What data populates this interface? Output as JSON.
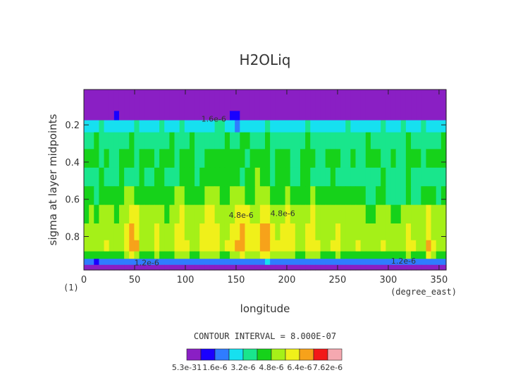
{
  "chart_data": {
    "type": "heatmap",
    "title": "H2OLiq",
    "xlabel": "longitude",
    "ylabel": "sigma at layer midpoints",
    "x_units": "(degree_east)",
    "corner_label": "(1)",
    "xlim": [
      0,
      357
    ],
    "ylim": [
      0.98,
      0.01
    ],
    "x_ticks": [
      0,
      50,
      100,
      150,
      200,
      250,
      300,
      350
    ],
    "x_tick_labels": [
      "0",
      "50",
      "100",
      "150",
      "200",
      "250",
      "300",
      "350"
    ],
    "y_ticks": [
      0.2,
      0.4,
      0.6,
      0.8
    ],
    "y_tick_labels": [
      "0.2",
      "0.4",
      "0.6",
      "0.8"
    ],
    "contour_interval_text": "CONTOUR INTERVAL = 8.000E-07",
    "contour_line_labels": [
      {
        "text": "1.2e-6",
        "x": 62,
        "y": 0.955
      },
      {
        "text": "1.6e-6",
        "x": 128,
        "y": 0.182
      },
      {
        "text": "4.8e-6",
        "x": 155,
        "y": 0.7
      },
      {
        "text": "4.8e-6",
        "x": 196,
        "y": 0.69
      },
      {
        "text": "1.2e-6",
        "x": 315,
        "y": 0.945
      }
    ],
    "colorbar": {
      "levels": [
        5.3e-31,
        8e-07,
        1.6e-06,
        2.4e-06,
        3.2e-06,
        4e-06,
        4.8e-06,
        5.6e-06,
        6.4e-06,
        7.2e-06,
        7.62e-06
      ],
      "colors": [
        "#8a1fc4",
        "#1a00ff",
        "#2f7cff",
        "#16e0f0",
        "#19e68c",
        "#16d21a",
        "#a5f018",
        "#f0f01a",
        "#f7a21a",
        "#f21818",
        "#f5a8b0"
      ],
      "labels": [
        "5.3e-31",
        "1.6e-6",
        "3.2e-6",
        "4.8e-6",
        "6.4e-6",
        "7.62e-6"
      ]
    },
    "series": [
      {
        "y": 0.02,
        "values": [
          0.05,
          0.05,
          0.05,
          0.05,
          0.05,
          0.05,
          0.05,
          0.05,
          0.05,
          0.05,
          0.05,
          0.05,
          0.05,
          0.05,
          0.05,
          0.05,
          0.05,
          0.05,
          0.05,
          0.05,
          0.05,
          0.05,
          0.05,
          0.05,
          0.05,
          0.05,
          0.05,
          0.05,
          0.05,
          0.05,
          0.05,
          0.05,
          0.05,
          0.05,
          0.05,
          0.05,
          0.05,
          0.05,
          0.05,
          0.05,
          0.05,
          0.05,
          0.05,
          0.05,
          0.05,
          0.05,
          0.05,
          0.05,
          0.05,
          0.05,
          0.05,
          0.05,
          0.05,
          0.05,
          0.05,
          0.05,
          0.05,
          0.05,
          0.05,
          0.05,
          0.05,
          0.05,
          0.05,
          0.05,
          0.05,
          0.05,
          0.05,
          0.05,
          0.05,
          0.05,
          0.05,
          0.05
        ]
      },
      {
        "y": 0.1,
        "values": [
          0.05,
          0.05,
          0.05,
          0.05,
          0.05,
          0.05,
          0.05,
          0.05,
          0.05,
          0.05,
          0.05,
          0.05,
          0.05,
          0.05,
          0.05,
          0.05,
          0.05,
          0.05,
          0.05,
          0.05,
          0.05,
          0.05,
          0.05,
          0.05,
          0.05,
          0.05,
          0.05,
          0.05,
          0.05,
          0.05,
          0.05,
          0.05,
          0.05,
          0.05,
          0.05,
          0.05,
          0.05,
          0.05,
          0.05,
          0.05,
          0.05,
          0.05,
          0.05,
          0.05,
          0.05,
          0.05,
          0.05,
          0.05,
          0.05,
          0.05,
          0.05,
          0.05,
          0.05,
          0.05,
          0.05,
          0.05,
          0.05,
          0.05,
          0.05,
          0.05,
          0.05,
          0.05,
          0.05,
          0.05,
          0.05,
          0.05,
          0.05,
          0.05,
          0.05,
          0.05,
          0.05,
          0.05
        ]
      },
      {
        "y": 0.15,
        "values": [
          0.6,
          0.5,
          0.6,
          0.7,
          0.5,
          0.6,
          0.8,
          0.6,
          0.5,
          0.6,
          0.7,
          0.6,
          0.5,
          0.6,
          0.6,
          0.7,
          0.5,
          0.6,
          0.6,
          0.7,
          0.6,
          0.5,
          0.6,
          0.7,
          0.6,
          0.6,
          0.5,
          0.6,
          0.7,
          0.9,
          0.8,
          0.6,
          0.6,
          0.5,
          0.6,
          0.6,
          0.7,
          0.5,
          0.6,
          0.6,
          0.6,
          0.7,
          0.5,
          0.6,
          0.6,
          0.7,
          0.6,
          0.5,
          0.6,
          0.7,
          0.6,
          0.6,
          0.5,
          0.6,
          0.7,
          0.6,
          0.6,
          0.5,
          0.6,
          0.7,
          0.6,
          0.6,
          0.5,
          0.6,
          0.7,
          0.6,
          0.6,
          0.5,
          0.6,
          0.7,
          0.6,
          0.6
        ]
      },
      {
        "y": 0.2,
        "values": [
          2.6,
          2.4,
          2.8,
          3.2,
          2.6,
          2.5,
          3.0,
          2.7,
          2.4,
          2.9,
          3.3,
          2.8,
          2.5,
          2.7,
          3.1,
          3.4,
          2.6,
          2.5,
          2.9,
          3.2,
          2.7,
          2.4,
          2.8,
          3.1,
          2.6,
          2.9,
          3.4,
          3.6,
          3.0,
          2.4,
          2.0,
          2.6,
          3.0,
          2.8,
          2.5,
          2.7,
          3.2,
          2.9,
          2.6,
          2.8,
          3.1,
          2.7,
          2.5,
          2.9,
          3.3,
          2.8,
          2.6,
          2.7,
          3.1,
          2.8,
          2.5,
          2.9,
          3.3,
          2.7,
          2.4,
          2.8,
          3.1,
          2.6,
          2.9,
          3.3,
          2.8,
          2.5,
          2.9,
          3.4,
          3.0,
          2.6,
          2.8,
          3.2,
          2.7,
          2.5,
          2.9,
          2.7
        ]
      },
      {
        "y": 0.28,
        "values": [
          3.3,
          3.8,
          4.2,
          3.6,
          3.4,
          3.9,
          3.5,
          3.3,
          3.6,
          4.1,
          3.7,
          3.4,
          3.5,
          3.9,
          3.6,
          3.3,
          3.7,
          4.0,
          3.5,
          3.4,
          3.8,
          4.2,
          3.6,
          3.3,
          3.5,
          3.9,
          3.6,
          3.7,
          4.1,
          3.8,
          3.5,
          4.3,
          4.6,
          3.9,
          3.5,
          3.6,
          4.0,
          3.7,
          3.4,
          3.6,
          3.9,
          3.5,
          3.3,
          3.7,
          4.1,
          3.8,
          3.5,
          3.4,
          3.8,
          3.6,
          3.3,
          3.5,
          3.9,
          3.6,
          3.4,
          3.7,
          4.1,
          3.8,
          3.5,
          3.6,
          3.9,
          3.5,
          3.4,
          3.7,
          4.0,
          3.6,
          3.3,
          3.6,
          3.9,
          3.7,
          3.5,
          4.0
        ]
      },
      {
        "y": 0.38,
        "values": [
          4.2,
          4.4,
          4.0,
          3.8,
          4.1,
          3.9,
          3.8,
          4.1,
          4.5,
          4.0,
          3.8,
          4.2,
          4.6,
          4.2,
          3.9,
          4.0,
          4.4,
          4.1,
          3.8,
          4.0,
          4.5,
          4.3,
          3.9,
          3.8,
          4.1,
          4.4,
          4.6,
          4.2,
          4.0,
          4.3,
          4.5,
          4.0,
          3.9,
          4.4,
          4.7,
          4.4,
          4.0,
          3.9,
          4.2,
          4.6,
          4.3,
          3.9,
          3.8,
          4.1,
          4.5,
          4.2,
          3.9,
          3.9,
          4.3,
          4.6,
          4.2,
          3.9,
          3.9,
          4.1,
          3.8,
          3.8,
          4.0,
          4.4,
          4.1,
          3.8,
          3.9,
          4.2,
          3.9,
          3.8,
          4.1,
          4.4,
          4.0,
          3.8,
          4.0,
          4.4,
          4.2,
          4.1
        ]
      },
      {
        "y": 0.48,
        "values": [
          3.9,
          3.6,
          3.8,
          4.1,
          3.7,
          3.6,
          3.9,
          4.1,
          3.6,
          3.4,
          3.9,
          4.2,
          3.8,
          3.7,
          4.1,
          4.4,
          3.9,
          3.7,
          3.8,
          4.2,
          4.5,
          4.0,
          3.8,
          4.0,
          4.4,
          4.7,
          4.3,
          4.0,
          4.1,
          4.5,
          4.2,
          3.9,
          4.0,
          4.4,
          4.8,
          4.5,
          4.1,
          3.9,
          4.2,
          4.6,
          4.2,
          3.8,
          3.7,
          4.0,
          4.3,
          3.9,
          3.6,
          3.6,
          3.9,
          4.2,
          3.8,
          3.6,
          3.4,
          3.6,
          3.9,
          3.7,
          3.4,
          3.4,
          3.7,
          4.0,
          3.7,
          3.5,
          3.3,
          3.7,
          4.0,
          3.6,
          3.2,
          3.5,
          3.8,
          3.6,
          3.4,
          3.7
        ]
      },
      {
        "y": 0.58,
        "values": [
          4.1,
          4.3,
          3.9,
          4.2,
          4.5,
          4.4,
          4.0,
          4.2,
          4.8,
          5.1,
          4.6,
          4.2,
          4.1,
          4.4,
          4.7,
          4.3,
          4.0,
          4.3,
          4.8,
          5.0,
          4.6,
          4.2,
          4.3,
          4.7,
          5.1,
          5.2,
          4.8,
          4.4,
          4.6,
          5.0,
          5.3,
          5.0,
          4.6,
          4.5,
          4.9,
          5.2,
          4.8,
          4.4,
          4.3,
          4.6,
          5.0,
          4.7,
          4.3,
          4.2,
          4.6,
          4.9,
          4.5,
          4.2,
          4.1,
          4.4,
          4.7,
          4.3,
          4.0,
          4.1,
          4.4,
          4.2,
          3.9,
          3.8,
          4.1,
          4.3,
          3.9,
          3.6,
          3.5,
          3.8,
          4.1,
          3.9,
          3.7,
          4.0,
          4.4,
          4.1,
          3.9,
          4.2
        ]
      },
      {
        "y": 0.68,
        "values": [
          4.6,
          4.8,
          4.5,
          4.9,
          5.1,
          4.8,
          4.6,
          4.9,
          5.5,
          6.1,
          5.6,
          5.0,
          4.8,
          5.0,
          5.3,
          5.0,
          4.7,
          4.9,
          5.4,
          5.8,
          5.2,
          4.8,
          4.9,
          5.3,
          5.7,
          5.9,
          5.5,
          5.0,
          5.1,
          5.5,
          5.9,
          6.0,
          5.6,
          5.2,
          5.4,
          5.9,
          6.0,
          5.5,
          5.1,
          5.2,
          5.6,
          5.4,
          5.0,
          4.9,
          5.3,
          5.6,
          5.2,
          4.9,
          4.8,
          5.1,
          5.4,
          5.0,
          4.8,
          4.9,
          5.2,
          5.0,
          4.7,
          4.6,
          4.9,
          5.2,
          4.8,
          4.6,
          4.6,
          5.0,
          5.4,
          5.1,
          4.8,
          5.0,
          5.6,
          5.2,
          4.9,
          5.0
        ]
      },
      {
        "y": 0.78,
        "values": [
          4.9,
          5.0,
          4.8,
          5.2,
          5.4,
          5.1,
          4.9,
          5.1,
          5.8,
          6.6,
          6.1,
          5.3,
          5.1,
          5.3,
          5.6,
          5.3,
          5.0,
          5.2,
          5.7,
          6.0,
          5.5,
          5.1,
          5.2,
          5.6,
          5.9,
          6.2,
          5.8,
          5.3,
          5.4,
          5.8,
          6.2,
          6.4,
          6.0,
          5.6,
          5.8,
          6.4,
          6.5,
          6.0,
          5.5,
          5.6,
          5.9,
          5.7,
          5.3,
          5.2,
          5.6,
          5.9,
          5.5,
          5.2,
          5.1,
          5.4,
          5.6,
          5.3,
          5.1,
          5.2,
          5.4,
          5.2,
          5.0,
          4.9,
          5.2,
          5.4,
          5.1,
          4.9,
          4.9,
          5.3,
          5.7,
          5.4,
          5.0,
          5.2,
          5.9,
          5.5,
          5.1,
          5.2
        ]
      },
      {
        "y": 0.86,
        "values": [
          5.1,
          5.2,
          5.0,
          5.4,
          5.6,
          5.3,
          5.1,
          5.3,
          5.9,
          7.0,
          6.5,
          5.5,
          5.2,
          5.4,
          5.7,
          5.5,
          5.2,
          5.4,
          5.9,
          6.2,
          5.7,
          5.3,
          5.4,
          5.8,
          6.1,
          6.3,
          6.0,
          5.5,
          5.6,
          6.0,
          6.4,
          6.8,
          6.2,
          5.8,
          6.0,
          6.8,
          7.0,
          6.3,
          5.7,
          5.8,
          6.1,
          5.9,
          5.5,
          5.4,
          5.8,
          6.1,
          5.7,
          5.4,
          5.3,
          5.6,
          5.8,
          5.5,
          5.3,
          5.4,
          5.6,
          5.4,
          5.2,
          5.1,
          5.4,
          5.6,
          5.3,
          5.1,
          5.1,
          5.5,
          5.9,
          5.6,
          5.2,
          5.4,
          6.8,
          5.8,
          5.3,
          5.4
        ]
      },
      {
        "y": 0.9,
        "values": [
          4.2,
          4.3,
          4.1,
          4.5,
          4.7,
          4.4,
          4.2,
          4.4,
          5.0,
          5.8,
          5.4,
          4.6,
          4.3,
          4.5,
          4.8,
          4.6,
          4.3,
          4.5,
          5.0,
          5.2,
          4.8,
          4.4,
          4.5,
          4.9,
          5.2,
          5.4,
          5.1,
          4.6,
          4.7,
          5.1,
          5.5,
          5.8,
          5.3,
          4.9,
          5.1,
          5.8,
          6.0,
          5.3,
          4.8,
          4.9,
          5.2,
          5.0,
          4.6,
          4.5,
          4.9,
          5.2,
          4.8,
          4.5,
          4.4,
          4.7,
          4.9,
          4.6,
          4.4,
          4.5,
          4.7,
          4.5,
          4.3,
          4.2,
          4.5,
          4.7,
          4.4,
          4.2,
          4.2,
          4.6,
          5.0,
          4.7,
          4.3,
          4.5,
          5.6,
          4.9,
          4.4,
          4.5
        ]
      },
      {
        "y": 0.94,
        "values": [
          1.6,
          1.7,
          1.5,
          1.8,
          1.9,
          1.7,
          1.6,
          1.7,
          2.0,
          2.3,
          2.1,
          1.8,
          1.7,
          1.8,
          1.9,
          1.8,
          1.7,
          1.8,
          2.0,
          2.1,
          1.9,
          1.7,
          1.8,
          1.9,
          2.1,
          2.2,
          2.0,
          1.8,
          1.9,
          2.0,
          2.2,
          2.3,
          2.1,
          1.9,
          2.0,
          2.3,
          2.4,
          2.1,
          1.9,
          1.9,
          2.1,
          2.0,
          1.8,
          1.8,
          1.9,
          2.1,
          1.9,
          1.8,
          1.7,
          1.9,
          2.0,
          1.8,
          1.7,
          1.8,
          1.9,
          1.8,
          1.7,
          1.7,
          1.8,
          1.9,
          1.7,
          1.7,
          1.7,
          1.8,
          2.0,
          1.9,
          1.7,
          1.8,
          2.2,
          1.9,
          1.8,
          1.8
        ]
      },
      {
        "y": 0.965,
        "values": [
          0.5,
          0.5,
          0.5,
          0.5,
          0.6,
          0.5,
          0.5,
          0.5,
          0.6,
          0.7,
          0.6,
          0.5,
          0.5,
          0.5,
          0.6,
          0.5,
          0.5,
          0.5,
          0.6,
          0.6,
          0.6,
          0.5,
          0.5,
          0.6,
          0.6,
          0.7,
          0.6,
          0.5,
          0.6,
          0.6,
          0.7,
          0.7,
          0.6,
          0.6,
          0.6,
          0.7,
          0.7,
          0.6,
          0.6,
          0.6,
          0.6,
          0.6,
          0.5,
          0.5,
          0.6,
          0.6,
          0.6,
          0.5,
          0.5,
          0.6,
          0.6,
          0.5,
          0.5,
          0.5,
          0.6,
          0.5,
          0.5,
          0.5,
          0.5,
          0.6,
          0.5,
          0.5,
          0.5,
          0.5,
          0.6,
          0.6,
          0.5,
          0.5,
          0.7,
          0.6,
          0.5,
          0.5
        ]
      },
      {
        "y": 0.98,
        "values": [
          0.2,
          0.2,
          0.2,
          0.2,
          0.2,
          0.2,
          0.2,
          0.2,
          0.2,
          0.2,
          0.2,
          0.2,
          0.2,
          0.2,
          0.2,
          0.2,
          0.2,
          0.2,
          0.2,
          0.2,
          0.2,
          0.2,
          0.2,
          0.2,
          0.2,
          0.2,
          0.2,
          0.2,
          0.2,
          0.2,
          0.2,
          0.2,
          0.2,
          0.2,
          0.2,
          0.2,
          0.2,
          0.2,
          0.2,
          0.2,
          0.2,
          0.2,
          0.2,
          0.2,
          0.2,
          0.2,
          0.2,
          0.2,
          0.2,
          0.2,
          0.2,
          0.2,
          0.2,
          0.2,
          0.2,
          0.2,
          0.2,
          0.2,
          0.2,
          0.2,
          0.2,
          0.2,
          0.2,
          0.2,
          0.2,
          0.2,
          0.2,
          0.2,
          0.2,
          0.2,
          0.2,
          0.2
        ]
      }
    ],
    "field_units_scale": "values in units of 1e-6"
  }
}
